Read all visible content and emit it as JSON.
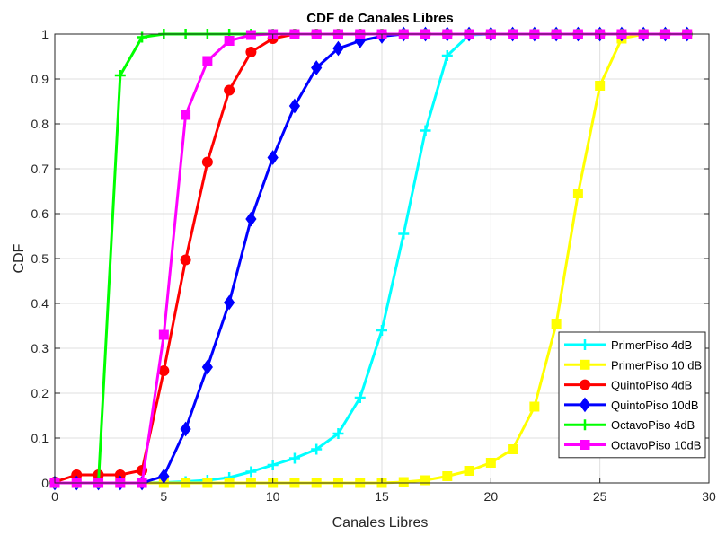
{
  "chart_data": {
    "type": "line",
    "title": "CDF de Canales Libres",
    "xlabel": "Canales Libres",
    "ylabel": "CDF",
    "xlim": [
      0,
      30
    ],
    "ylim": [
      0,
      1
    ],
    "xticks": [
      0,
      5,
      10,
      15,
      20,
      25,
      30
    ],
    "yticks": [
      0,
      0.1,
      0.2,
      0.3,
      0.4,
      0.5,
      0.6,
      0.7,
      0.8,
      0.9,
      1
    ],
    "grid": true,
    "legend_position": "bottom-right",
    "x": [
      0,
      1,
      2,
      3,
      4,
      5,
      6,
      7,
      8,
      9,
      10,
      11,
      12,
      13,
      14,
      15,
      16,
      17,
      18,
      19,
      20,
      21,
      22,
      23,
      24,
      25,
      26,
      27,
      28,
      29
    ],
    "series": [
      {
        "name": "PrimerPiso 4dB",
        "color": "#00ffff",
        "marker": "plus",
        "values": [
          0,
          0,
          0,
          0,
          0,
          0.001,
          0.003,
          0.006,
          0.012,
          0.025,
          0.04,
          0.055,
          0.075,
          0.11,
          0.19,
          0.34,
          0.555,
          0.785,
          0.952,
          0.998,
          1,
          1,
          1,
          1,
          1,
          1,
          1,
          1,
          1,
          1
        ]
      },
      {
        "name": "PrimerPiso 10 dB",
        "color": "#ffff00",
        "marker": "square",
        "values": [
          0,
          0,
          0,
          0,
          0,
          0,
          0,
          0,
          0,
          0,
          0,
          0,
          0,
          0,
          0,
          0,
          0.002,
          0.006,
          0.015,
          0.027,
          0.045,
          0.075,
          0.17,
          0.355,
          0.645,
          0.885,
          0.99,
          1,
          1,
          1
        ]
      },
      {
        "name": "QuintoPiso 4dB",
        "color": "#ff0000",
        "marker": "circle",
        "values": [
          0.002,
          0.018,
          0.018,
          0.018,
          0.028,
          0.25,
          0.497,
          0.715,
          0.875,
          0.96,
          0.99,
          1,
          1,
          1,
          1,
          1,
          1,
          1,
          1,
          1,
          1,
          1,
          1,
          1,
          1,
          1,
          1,
          1,
          1,
          1
        ]
      },
      {
        "name": "QuintoPiso 10dB",
        "color": "#0000ff",
        "marker": "diamond",
        "values": [
          0,
          0,
          0,
          0,
          0,
          0.015,
          0.12,
          0.258,
          0.402,
          0.588,
          0.725,
          0.84,
          0.925,
          0.968,
          0.985,
          0.995,
          1,
          1,
          1,
          1,
          1,
          1,
          1,
          1,
          1,
          1,
          1,
          1,
          1,
          1
        ]
      },
      {
        "name": "OctavoPiso 4dB",
        "color": "#00ff00",
        "marker": "plus",
        "values": [
          0,
          0,
          0,
          0.908,
          0.993,
          1,
          1,
          1,
          1,
          1,
          1,
          1,
          1,
          1,
          1,
          1,
          1,
          1,
          1,
          1,
          1,
          1,
          1,
          1,
          1,
          1,
          1,
          1,
          1,
          1
        ]
      },
      {
        "name": "OctavoPiso 10dB",
        "color": "#ff00ff",
        "marker": "square",
        "values": [
          0,
          0,
          0,
          0,
          0,
          0.33,
          0.82,
          0.94,
          0.985,
          0.998,
          1,
          1,
          1,
          1,
          1,
          1,
          1,
          1,
          1,
          1,
          1,
          1,
          1,
          1,
          1,
          1,
          1,
          1,
          1,
          1
        ]
      }
    ]
  }
}
